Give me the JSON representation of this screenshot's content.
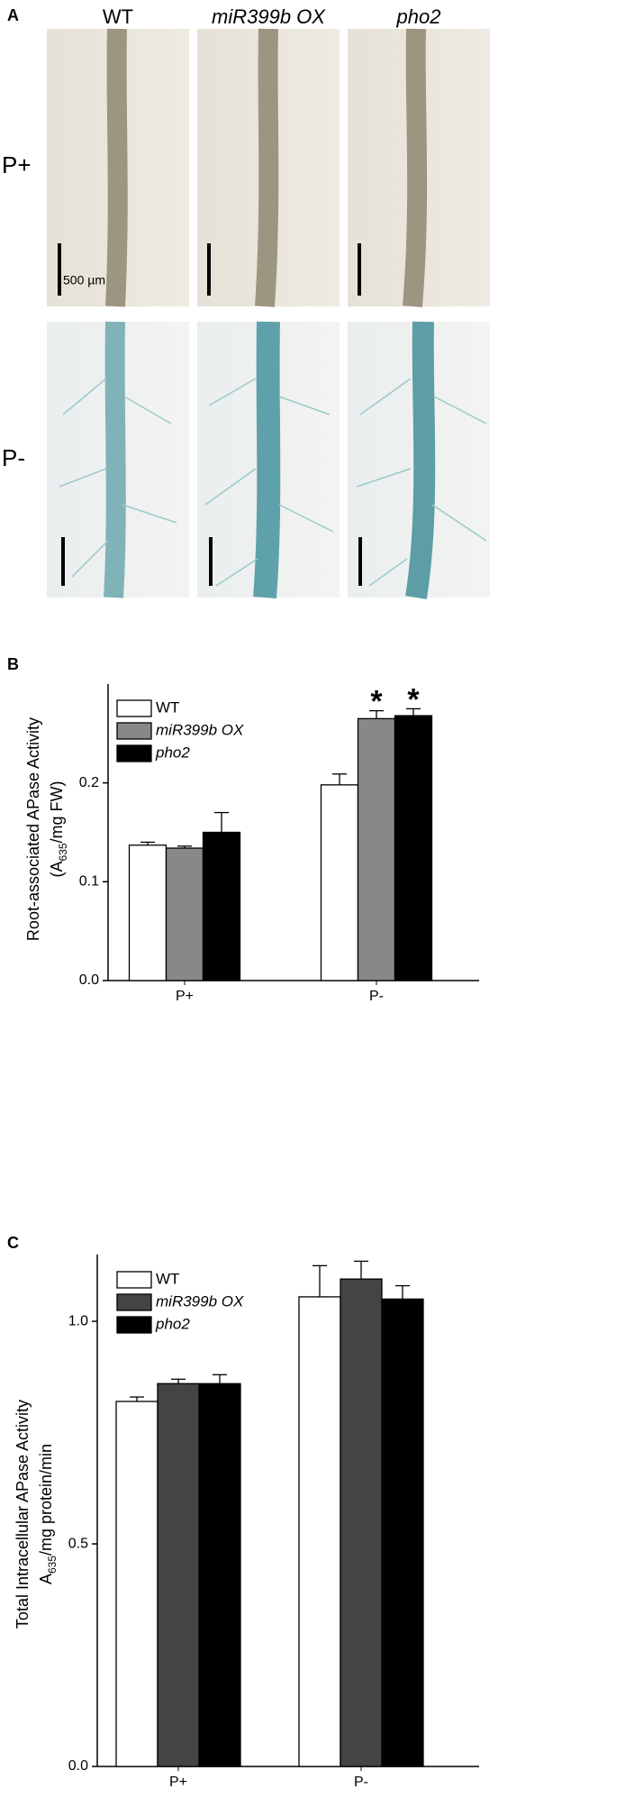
{
  "panel_a": {
    "label": "A",
    "columns": [
      "WT",
      "miR399b OX",
      "pho2"
    ],
    "rows": [
      "P+",
      "P-"
    ],
    "scale_label": "500 µm"
  },
  "chart_data": [
    {
      "type": "bar",
      "panel_label": "B",
      "y_label": [
        "Root-associated APase Activity",
        {
          "pre": "(A",
          "sub": "635",
          "post": "/mg FW)"
        }
      ],
      "categories": [
        "P+",
        "P-"
      ],
      "series": [
        {
          "name": "WT",
          "color": "#ffffff",
          "values": [
            0.137,
            0.198
          ],
          "errors": [
            0.003,
            0.011
          ]
        },
        {
          "name": "miR399b OX",
          "color": "#888888",
          "values": [
            0.134,
            0.265
          ],
          "errors": [
            0.002,
            0.008
          ]
        },
        {
          "name": "pho2",
          "color": "#000000",
          "values": [
            0.15,
            0.268
          ],
          "errors": [
            0.02,
            0.007
          ]
        }
      ],
      "ylim": [
        0,
        0.3
      ],
      "yticks": [
        {
          "value": 0,
          "label": "0.0"
        },
        0.1,
        0.2
      ],
      "annotations": [
        "*",
        "*"
      ]
    },
    {
      "type": "bar",
      "panel_label": "C",
      "y_label": [
        "Total Intracellular APase Activity",
        {
          "pre": "A",
          "sub": "635",
          "post": "/mg protein/min"
        }
      ],
      "categories": [
        "P+",
        "P-"
      ],
      "series": [
        {
          "name": "WT",
          "color": "#ffffff",
          "values": [
            0.82,
            1.055
          ],
          "errors": [
            0.01,
            0.07
          ]
        },
        {
          "name": "miR399b OX",
          "color": "#444444",
          "values": [
            0.86,
            1.095
          ],
          "errors": [
            0.01,
            0.04
          ]
        },
        {
          "name": "pho2",
          "color": "#000000",
          "values": [
            0.86,
            1.05
          ],
          "errors": [
            0.02,
            0.03
          ]
        }
      ],
      "ylim": [
        0,
        1.15
      ],
      "yticks": [
        {
          "value": 0,
          "label": "0.0"
        },
        0.5,
        {
          "value": 1,
          "label": "1.0"
        }
      ]
    }
  ]
}
